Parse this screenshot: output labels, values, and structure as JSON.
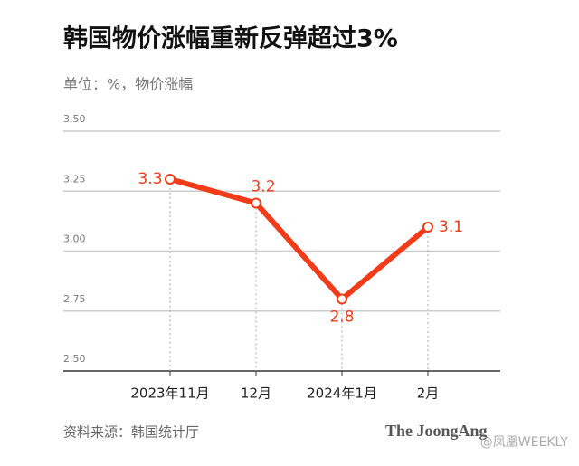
{
  "chart_data": {
    "type": "line",
    "title": "韩国物价涨幅重新反弹超过3%",
    "subtitle": "单位：%，物价涨幅",
    "categories": [
      "2023年11月",
      "12月",
      "2024年1月",
      "2月"
    ],
    "series": [
      {
        "name": "物价涨幅",
        "color": "#f23c19",
        "values": [
          3.3,
          3.2,
          2.8,
          3.1
        ]
      }
    ],
    "ylim": [
      2.5,
      3.5
    ],
    "yticks": [
      {
        "value": 2.5,
        "label": "2.50"
      },
      {
        "value": 2.75,
        "label": "2.75"
      },
      {
        "value": 3.0,
        "label": "3.00"
      },
      {
        "value": 3.25,
        "label": "3.25"
      },
      {
        "value": 3.5,
        "label": "3.50"
      }
    ],
    "grid": true,
    "source": "资料来源：韩国统计厅",
    "logo": "The JoongAng",
    "watermark": "@凤凰WEEKLY"
  }
}
